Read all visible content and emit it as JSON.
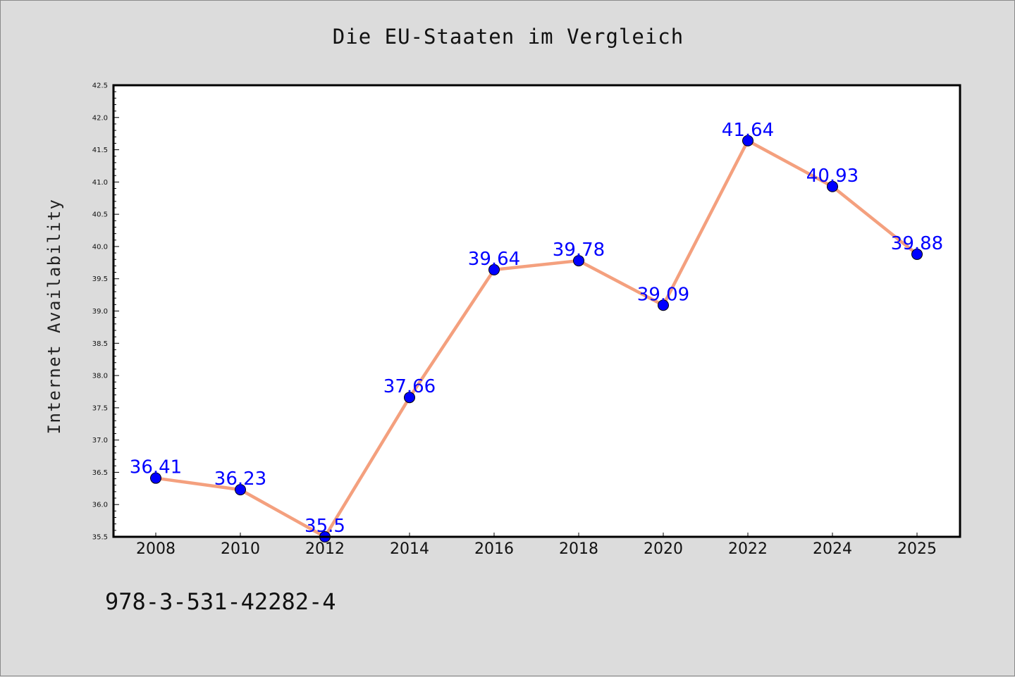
{
  "chart_data": {
    "type": "line",
    "title": "Die EU-Staaten im Vergleich",
    "xlabel": "",
    "ylabel": "Internet Availability",
    "categories": [
      "2008",
      "2010",
      "2012",
      "2014",
      "2016",
      "2018",
      "2020",
      "2022",
      "2024",
      "2025"
    ],
    "series": [
      {
        "values": [
          36.41,
          36.23,
          35.5,
          37.66,
          39.64,
          39.78,
          39.09,
          41.64,
          40.93,
          39.88
        ],
        "data_labels": [
          "36.41",
          "36.23",
          "35.5",
          "37.66",
          "39.64",
          "39.78",
          "39.09",
          "41.64",
          "40.93",
          "39.88"
        ],
        "line_color": "#f4a07e",
        "marker_color": "#0000ff"
      }
    ],
    "ylim": [
      35.5,
      42.5
    ],
    "yticks": [
      "35.5",
      "36.0",
      "36.5",
      "37.0",
      "37.5",
      "38.0",
      "38.5",
      "39.0",
      "39.5",
      "40.0",
      "40.5",
      "41.0",
      "41.5",
      "42.0",
      "42.5"
    ],
    "grid": false,
    "legend": "none"
  },
  "footer": {
    "isbn": "978-3-531-42282-4"
  },
  "colors": {
    "background": "#dcdcdc",
    "plot_background": "#ffffff",
    "line": "#f4a07e",
    "marker": "#0000ff",
    "data_label": "#0000ff"
  }
}
